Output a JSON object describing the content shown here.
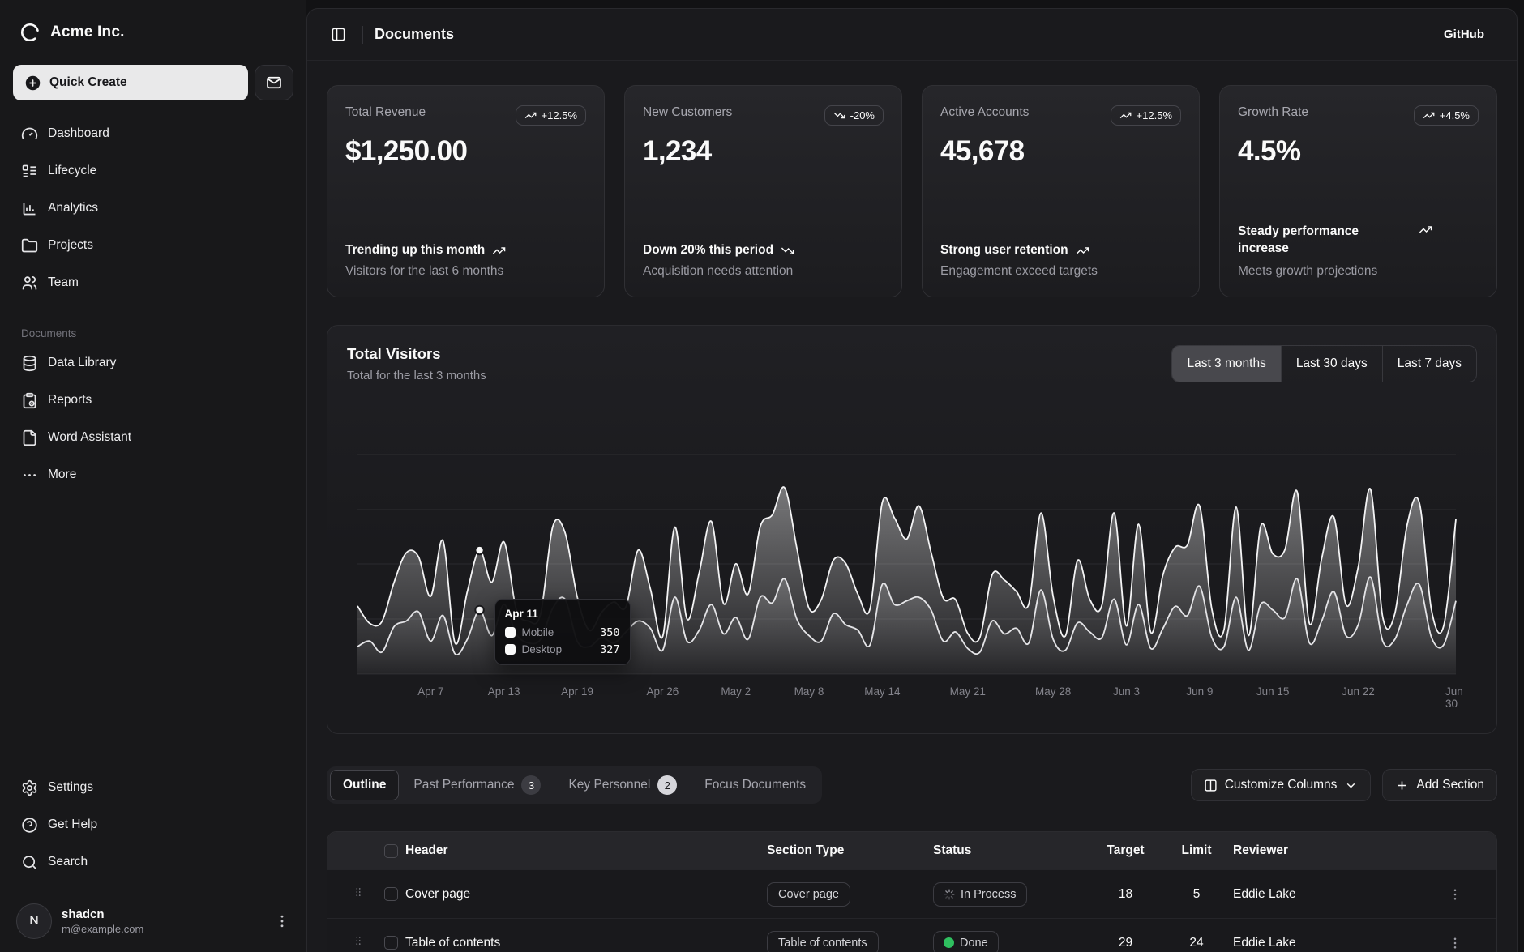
{
  "brand": {
    "name": "Acme Inc."
  },
  "sidebar": {
    "quick_create": "Quick Create",
    "nav_main": [
      "Dashboard",
      "Lifecycle",
      "Analytics",
      "Projects",
      "Team"
    ],
    "section_label": "Documents",
    "nav_documents": [
      "Data Library",
      "Reports",
      "Word Assistant",
      "More"
    ],
    "nav_secondary": [
      "Settings",
      "Get Help",
      "Search"
    ],
    "user": {
      "name": "shadcn",
      "email": "m@example.com",
      "initial": "N"
    }
  },
  "header": {
    "title": "Documents",
    "link": "GitHub"
  },
  "cards": [
    {
      "title": "Total Revenue",
      "badge": "+12.5%",
      "trend": "up",
      "value": "$1,250.00",
      "footer_primary": "Trending up this month",
      "footer_secondary": "Visitors for the last 6 months"
    },
    {
      "title": "New Customers",
      "badge": "-20%",
      "trend": "down",
      "value": "1,234",
      "footer_primary": "Down 20% this period",
      "footer_secondary": "Acquisition needs attention"
    },
    {
      "title": "Active Accounts",
      "badge": "+12.5%",
      "trend": "up",
      "value": "45,678",
      "footer_primary": "Strong user retention",
      "footer_secondary": "Engagement exceed targets"
    },
    {
      "title": "Growth Rate",
      "badge": "+4.5%",
      "trend": "up",
      "value": "4.5%",
      "footer_primary": "Steady performance increase",
      "footer_secondary": "Meets growth projections"
    }
  ],
  "visitors": {
    "title": "Total Visitors",
    "subtitle": "Total for the last 3 months",
    "ranges": [
      "Last 3 months",
      "Last 30 days",
      "Last 7 days"
    ],
    "active_range": 0
  },
  "chart_data": {
    "type": "area",
    "stacked": true,
    "title": "Total Visitors",
    "x_range": [
      "Apr 1",
      "Jun 30"
    ],
    "legend_position": "tooltip-only",
    "grid": "horizontal",
    "ticks": [
      {
        "label": "Apr 7",
        "day": 6
      },
      {
        "label": "Apr 13",
        "day": 12
      },
      {
        "label": "Apr 19",
        "day": 18
      },
      {
        "label": "Apr 26",
        "day": 25
      },
      {
        "label": "May 2",
        "day": 31
      },
      {
        "label": "May 8",
        "day": 37
      },
      {
        "label": "May 14",
        "day": 43
      },
      {
        "label": "May 21",
        "day": 50
      },
      {
        "label": "May 28",
        "day": 57
      },
      {
        "label": "Jun 3",
        "day": 63
      },
      {
        "label": "Jun 9",
        "day": 69
      },
      {
        "label": "Jun 15",
        "day": 75
      },
      {
        "label": "Jun 22",
        "day": 82
      },
      {
        "label": "Jun 30",
        "day": 90
      }
    ],
    "series": [
      {
        "name": "Mobile",
        "values": [
          150,
          180,
          120,
          260,
          290,
          340,
          180,
          320,
          110,
          190,
          350,
          210,
          380,
          220,
          170,
          190,
          360,
          410,
          180,
          150,
          200,
          170,
          230,
          290,
          250,
          130,
          420,
          180,
          240,
          380,
          220,
          310,
          190,
          420,
          390,
          520,
          300,
          210,
          180,
          330,
          270,
          240,
          160,
          490,
          380,
          400,
          420,
          350,
          180,
          230,
          140,
          120,
          290,
          220,
          250,
          170,
          460,
          190,
          130,
          280,
          230,
          200,
          410,
          160,
          380,
          140,
          250,
          370,
          320,
          480,
          200,
          150,
          420,
          130,
          380,
          350,
          310,
          520,
          170,
          290,
          450,
          210,
          270,
          530,
          180,
          190,
          380,
          490,
          200,
          160,
          400
        ]
      },
      {
        "name": "Desktop",
        "values": [
          222,
          97,
          167,
          242,
          373,
          301,
          245,
          409,
          59,
          261,
          327,
          292,
          342,
          137,
          120,
          138,
          446,
          364,
          243,
          89,
          137,
          224,
          138,
          387,
          215,
          75,
          383,
          122,
          315,
          454,
          165,
          293,
          247,
          385,
          481,
          498,
          388,
          149,
          227,
          293,
          335,
          197,
          197,
          448,
          473,
          338,
          499,
          315,
          235,
          177,
          82,
          81,
          252,
          294,
          201,
          213,
          420,
          233,
          78,
          340,
          178,
          178,
          470,
          103,
          439,
          88,
          294,
          323,
          385,
          438,
          155,
          92,
          492,
          81,
          426,
          307,
          371,
          475,
          107,
          341,
          408,
          169,
          317,
          480,
          132,
          141,
          434,
          448,
          149,
          103,
          446
        ]
      }
    ],
    "highlight": {
      "label": "Apr 11",
      "day": 10,
      "rows": [
        {
          "name": "Mobile",
          "value": "350"
        },
        {
          "name": "Desktop",
          "value": "327"
        }
      ]
    }
  },
  "toolbar": {
    "tabs": [
      {
        "label": "Outline",
        "active": true
      },
      {
        "label": "Past Performance",
        "badge": "3"
      },
      {
        "label": "Key Personnel",
        "badge": "2"
      },
      {
        "label": "Focus Documents"
      }
    ],
    "customize_label": "Customize Columns",
    "add_label": "Add Section"
  },
  "table": {
    "columns": [
      "Header",
      "Section Type",
      "Status",
      "Target",
      "Limit",
      "Reviewer"
    ],
    "rows": [
      {
        "header": "Cover page",
        "type": "Cover page",
        "status": "In Process",
        "status_kind": "process",
        "target": "18",
        "limit": "5",
        "reviewer": "Eddie Lake"
      },
      {
        "header": "Table of contents",
        "type": "Table of contents",
        "status": "Done",
        "status_kind": "done",
        "target": "29",
        "limit": "24",
        "reviewer": "Eddie Lake"
      }
    ]
  }
}
